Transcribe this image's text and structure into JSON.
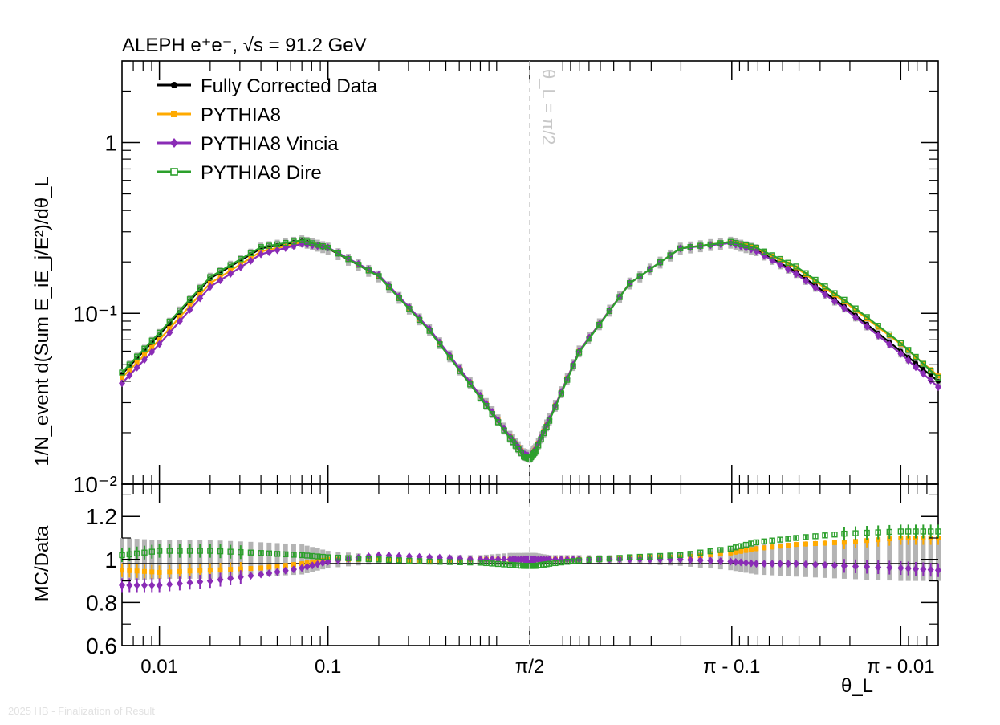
{
  "header": {
    "text": "ALEPH e⁺e⁻, √s = 91.2 GeV"
  },
  "footer": {
    "text": "2025 HB - Finalization of Result"
  },
  "chart_data": [
    {
      "type": "line",
      "panel": "main",
      "yscale": "log",
      "ylim": [
        0.01,
        3.0
      ],
      "ylabel": "1/N_event d(Sum E_iE_j/E²)/dθ_L",
      "yticks": [
        "10⁻²",
        "10⁻¹",
        "1"
      ],
      "xlabel": "θ_L",
      "xticks": [
        "0.01",
        "0.1",
        "π/2",
        "π - 0.1",
        "π - 0.01"
      ],
      "annotation": "θ_L = π/2",
      "legend_position": "top-left",
      "x_coordinate": "symmetric log in θ up to π/2, log in (π-θ) above π/2",
      "x": [
        0.006,
        0.01,
        0.02,
        0.04,
        0.07,
        0.1,
        0.2,
        0.4,
        0.8,
        1.2,
        1.45,
        1.5708,
        1.69,
        1.94,
        2.34,
        2.74,
        2.94,
        3.04,
        3.07,
        3.1,
        3.12,
        3.1316,
        3.1356
      ],
      "series": [
        {
          "name": "Fully Corrected Data",
          "color": "#000000",
          "marker": "circle",
          "values": [
            0.044,
            0.075,
            0.16,
            0.24,
            0.265,
            0.24,
            0.165,
            0.08,
            0.033,
            0.019,
            0.015,
            0.0145,
            0.016,
            0.024,
            0.06,
            0.15,
            0.24,
            0.26,
            0.235,
            0.175,
            0.11,
            0.06,
            0.04
          ]
        },
        {
          "name": "PYTHIA8",
          "color": "#ffaa00",
          "marker": "square",
          "values": [
            0.042,
            0.07,
            0.15,
            0.23,
            0.26,
            0.242,
            0.166,
            0.08,
            0.033,
            0.019,
            0.015,
            0.0145,
            0.016,
            0.024,
            0.06,
            0.15,
            0.24,
            0.262,
            0.24,
            0.185,
            0.117,
            0.066,
            0.043
          ]
        },
        {
          "name": "PYTHIA8 Vincia",
          "color": "#8a2cb6",
          "marker": "diamond",
          "values": [
            0.039,
            0.066,
            0.143,
            0.222,
            0.255,
            0.243,
            0.168,
            0.081,
            0.033,
            0.019,
            0.015,
            0.0145,
            0.016,
            0.024,
            0.06,
            0.15,
            0.24,
            0.258,
            0.232,
            0.17,
            0.107,
            0.058,
            0.037
          ]
        },
        {
          "name": "PYTHIA8 Dire",
          "color": "#2ca02c",
          "marker": "open-square",
          "values": [
            0.045,
            0.077,
            0.163,
            0.244,
            0.268,
            0.242,
            0.165,
            0.079,
            0.032,
            0.0185,
            0.0145,
            0.0141,
            0.0155,
            0.0235,
            0.059,
            0.15,
            0.24,
            0.262,
            0.242,
            0.188,
            0.12,
            0.067,
            0.042
          ]
        }
      ]
    },
    {
      "type": "line",
      "panel": "ratio",
      "ylabel": "MC/Data",
      "ylim": [
        0.6,
        1.35
      ],
      "yticks": [
        "0.6",
        "0.8",
        "1",
        "1.2"
      ],
      "x": [
        0.006,
        0.01,
        0.02,
        0.04,
        0.07,
        0.1,
        0.2,
        0.4,
        0.8,
        1.2,
        1.45,
        1.5708,
        1.69,
        1.94,
        2.34,
        2.74,
        2.94,
        3.04,
        3.07,
        3.1,
        3.12,
        3.1316,
        3.1356
      ],
      "data_uncertainty_band": [
        0.1,
        0.09,
        0.09,
        0.08,
        0.07,
        0.04,
        0.02,
        0.02,
        0.02,
        0.03,
        0.03,
        0.03,
        0.03,
        0.02,
        0.02,
        0.02,
        0.03,
        0.05,
        0.07,
        0.08,
        0.09,
        0.1,
        0.1
      ],
      "series": [
        {
          "name": "PYTHIA8",
          "color": "#ffaa00",
          "values": [
            0.95,
            0.94,
            0.95,
            0.96,
            0.98,
            1.0,
            1.0,
            0.995,
            1.0,
            1.0,
            1.0,
            1.0,
            1.0,
            1.0,
            1.0,
            1.01,
            1.01,
            1.03,
            1.05,
            1.07,
            1.08,
            1.1,
            1.1
          ]
        },
        {
          "name": "PYTHIA8 Vincia",
          "color": "#8a2cb6",
          "values": [
            0.88,
            0.88,
            0.9,
            0.93,
            0.96,
            0.99,
            1.02,
            1.01,
            1.0,
            1.0,
            1.0,
            1.0,
            1.0,
            1.0,
            1.0,
            1.0,
            1.0,
            0.99,
            0.98,
            0.98,
            0.97,
            0.96,
            0.95
          ]
        },
        {
          "name": "PYTHIA8 Dire",
          "color": "#2ca02c",
          "values": [
            1.02,
            1.04,
            1.04,
            1.03,
            1.02,
            1.01,
            1.0,
            0.99,
            0.985,
            0.975,
            0.97,
            0.97,
            0.97,
            0.98,
            0.995,
            1.01,
            1.02,
            1.05,
            1.08,
            1.1,
            1.12,
            1.13,
            1.13
          ]
        }
      ]
    }
  ]
}
